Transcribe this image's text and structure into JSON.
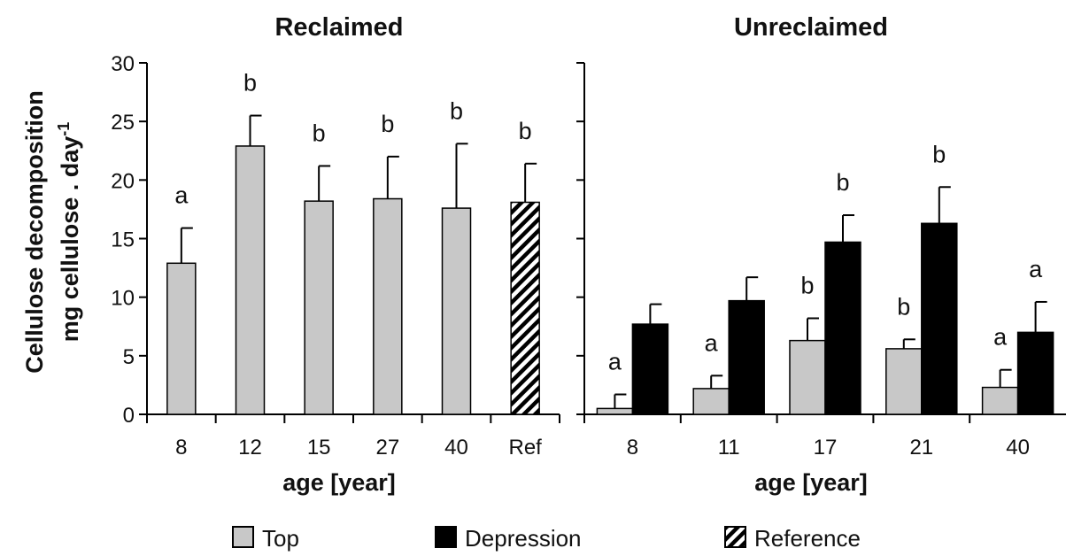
{
  "chart_data": [
    {
      "type": "bar",
      "title": "Reclaimed",
      "xlabel": "age [year]",
      "ylabel": "Cellulose decomposition",
      "ylabel_unit_prefix": "mg cellulose . day",
      "ylabel_unit_exp": "-1",
      "ylim": [
        0,
        30
      ],
      "yticks": [
        "0",
        "5",
        "10",
        "15",
        "20",
        "25",
        "30"
      ],
      "categories": [
        "8",
        "12",
        "15",
        "27",
        "40",
        "Ref"
      ],
      "series": [
        {
          "name": "Top",
          "values": [
            12.9,
            22.9,
            18.2,
            18.4,
            17.6,
            null
          ],
          "errors": [
            3.0,
            2.6,
            3.0,
            3.6,
            5.5,
            null
          ],
          "labels": [
            "a",
            "b",
            "b",
            "b",
            "b",
            null
          ]
        },
        {
          "name": "Reference",
          "values": [
            null,
            null,
            null,
            null,
            null,
            18.1
          ],
          "errors": [
            null,
            null,
            null,
            null,
            null,
            3.3
          ],
          "labels": [
            null,
            null,
            null,
            null,
            null,
            "b"
          ]
        }
      ]
    },
    {
      "type": "bar",
      "title": "Unreclaimed",
      "xlabel": "age [year]",
      "ylim": [
        0,
        30
      ],
      "categories": [
        "8",
        "11",
        "17",
        "21",
        "40"
      ],
      "series": [
        {
          "name": "Top",
          "values": [
            0.5,
            2.2,
            6.3,
            5.6,
            2.3
          ],
          "errors": [
            1.2,
            1.1,
            1.9,
            0.8,
            1.5
          ],
          "labels": [
            "a",
            "a",
            "b",
            "b",
            "a"
          ]
        },
        {
          "name": "Depression",
          "values": [
            7.7,
            9.7,
            14.7,
            16.3,
            7.0
          ],
          "errors": [
            1.7,
            2.0,
            2.3,
            3.1,
            2.6
          ],
          "labels": [
            null,
            null,
            "b",
            "b",
            "a"
          ]
        }
      ]
    }
  ],
  "legend": [
    {
      "label": "Top",
      "color": "#c8c8c8",
      "pattern": "solid"
    },
    {
      "label": "Depression",
      "color": "#000000",
      "pattern": "solid"
    },
    {
      "label": "Reference",
      "color": "#ffffff",
      "pattern": "hatch"
    }
  ],
  "colors": {
    "top": "#c8c8c8",
    "depression": "#000000",
    "axis": "#000000"
  }
}
